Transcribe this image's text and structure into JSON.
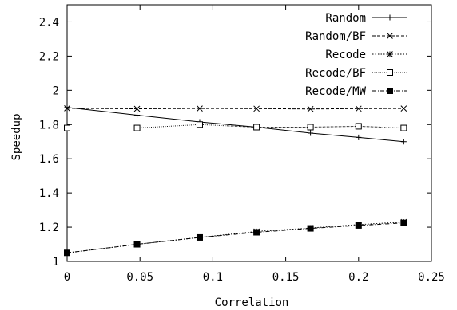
{
  "chart_data": {
    "type": "line",
    "title": "",
    "xlabel": "Correlation",
    "ylabel": "Speedup",
    "xlim": [
      0,
      0.25
    ],
    "ylim": [
      1,
      2.5
    ],
    "xticks": [
      "0",
      "0.05",
      "0.1",
      "0.15",
      "0.2",
      "0.25"
    ],
    "yticks": [
      "1",
      "1.2",
      "1.4",
      "1.6",
      "1.8",
      "2",
      "2.2",
      "2.4"
    ],
    "grid": false,
    "legend_position": "top-right",
    "series": [
      {
        "name": "Random",
        "marker": "plus",
        "dash": "solid",
        "x": [
          0,
          0.048,
          0.091,
          0.13,
          0.167,
          0.2,
          0.231
        ],
        "y": [
          1.9,
          1.855,
          1.815,
          1.785,
          1.75,
          1.725,
          1.7
        ]
      },
      {
        "name": "Random/BF",
        "marker": "cross",
        "dash": "dashed",
        "x": [
          0,
          0.048,
          0.091,
          0.13,
          0.167,
          0.2,
          0.231
        ],
        "y": [
          1.895,
          1.892,
          1.894,
          1.893,
          1.891,
          1.893,
          1.894
        ]
      },
      {
        "name": "Recode",
        "marker": "star",
        "dash": "dotted",
        "x": [
          0,
          0.048,
          0.091,
          0.13,
          0.167,
          0.2,
          0.231
        ],
        "y": [
          1.05,
          1.1,
          1.14,
          1.175,
          1.195,
          1.215,
          1.23
        ]
      },
      {
        "name": "Recode/BF",
        "marker": "open-square",
        "dash": "fine-dotted",
        "x": [
          0,
          0.048,
          0.091,
          0.13,
          0.167,
          0.2,
          0.231
        ],
        "y": [
          1.78,
          1.78,
          1.8,
          1.785,
          1.785,
          1.79,
          1.78
        ]
      },
      {
        "name": "Recode/MW",
        "marker": "filled-square",
        "dash": "dash-dot",
        "x": [
          0,
          0.048,
          0.091,
          0.13,
          0.167,
          0.2,
          0.231
        ],
        "y": [
          1.05,
          1.1,
          1.14,
          1.17,
          1.193,
          1.21,
          1.225
        ]
      }
    ]
  }
}
